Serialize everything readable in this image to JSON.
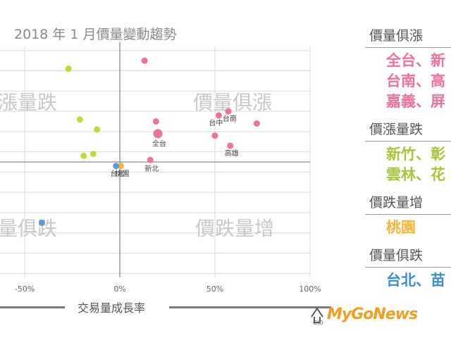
{
  "chart_data": {
    "type": "scatter",
    "title": "2018 年 1 月價量變動趨勢",
    "xlabel": "交易量成長率",
    "x_ticks": [
      "-50%",
      "0%",
      "50%",
      "100%"
    ],
    "x_tick_values": [
      -50,
      0,
      50,
      100
    ],
    "xlim": [
      -63,
      100
    ],
    "ylim": [
      -57,
      57
    ],
    "grid": true,
    "quadrant_labels": {
      "top_left": "漲量跌",
      "top_right": "價量俱漲",
      "bottom_left": "量俱跌",
      "bottom_right": "價跌量增"
    },
    "series": [
      {
        "color": "#ef7399",
        "points": [
          {
            "x": 13,
            "y": 50,
            "label": ""
          },
          {
            "x": 19,
            "y": 20,
            "label": ""
          },
          {
            "x": 20,
            "y": 14,
            "label": "全台"
          },
          {
            "x": 52,
            "y": 23,
            "label": "台中"
          },
          {
            "x": 57,
            "y": 25,
            "label": "台南"
          },
          {
            "x": 50,
            "y": 13,
            "label": ""
          },
          {
            "x": 72,
            "y": 19,
            "label": ""
          },
          {
            "x": 58,
            "y": 8,
            "label": "高雄"
          },
          {
            "x": 16,
            "y": 1,
            "label": "新北"
          }
        ]
      },
      {
        "color": "#c5d83a",
        "points": [
          {
            "x": -27,
            "y": 46,
            "label": ""
          },
          {
            "x": -21,
            "y": 21,
            "label": ""
          },
          {
            "x": -12,
            "y": 16,
            "label": ""
          },
          {
            "x": -19,
            "y": 3,
            "label": ""
          },
          {
            "x": -14,
            "y": 4,
            "label": ""
          }
        ]
      },
      {
        "color": "#f4b735",
        "points": [
          {
            "x": 0.5,
            "y": -2,
            "label": "桃園"
          }
        ]
      },
      {
        "color": "#5b9bd5",
        "points": [
          {
            "x": -2,
            "y": -2,
            "label": "台北"
          },
          {
            "x": -41,
            "y": -30,
            "label": ""
          }
        ]
      }
    ]
  },
  "legend_panel": {
    "categories": [
      {
        "heading": "價量俱漲",
        "lines": [
          "全台、新",
          "台南、高",
          "嘉義、屏"
        ],
        "color": "pink"
      },
      {
        "heading": "價漲量跌",
        "lines": [
          "新竹、彰",
          "雲林、花"
        ],
        "color": "green"
      },
      {
        "heading": "價跌量增",
        "lines": [
          "桃園"
        ],
        "color": "orange"
      },
      {
        "heading": "價量俱跌",
        "lines": [
          "台北、苗"
        ],
        "color": "blue"
      }
    ]
  },
  "logo": {
    "text": "MyGoNews",
    "sub": "GIO"
  }
}
